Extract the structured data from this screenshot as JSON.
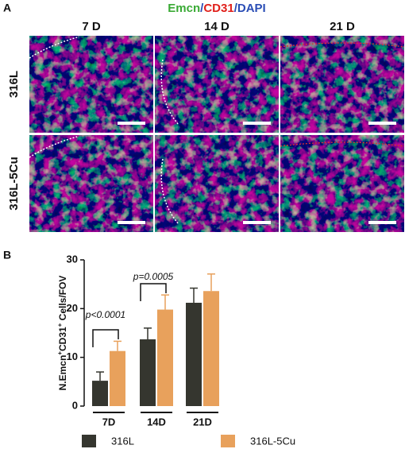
{
  "panel_a": {
    "label": "A",
    "title_parts": [
      {
        "text": "Emcn",
        "color": "#3aaa35"
      },
      {
        "text": "/",
        "color": "#2a4db5"
      },
      {
        "text": "CD31",
        "color": "#e0201b"
      },
      {
        "text": "/DAPI",
        "color": "#2a4db5"
      }
    ],
    "columns": [
      "7 D",
      "14 D",
      "21 D"
    ],
    "rows": [
      "316L",
      "316L-5Cu"
    ]
  },
  "chart_data": {
    "type": "bar",
    "panel_label": "B",
    "y_label_parts": [
      "N.Emcn",
      "+",
      "CD31",
      "+",
      " Cells/FOV"
    ],
    "categories": [
      "7D",
      "14D",
      "21D"
    ],
    "series": [
      {
        "name": "316L",
        "color": "#35362f",
        "values": [
          5.2,
          13.7,
          21.2
        ],
        "errors": [
          1.8,
          2.3,
          3.0
        ]
      },
      {
        "name": "316L-5Cu",
        "color": "#e8a15c",
        "values": [
          11.3,
          19.8,
          23.6
        ],
        "errors": [
          2.0,
          3.0,
          3.5
        ]
      }
    ],
    "annotations": [
      "p<0.0001",
      "p=0.0005"
    ],
    "ylim": [
      0,
      30
    ],
    "yticks": [
      0,
      10,
      20,
      30
    ]
  }
}
